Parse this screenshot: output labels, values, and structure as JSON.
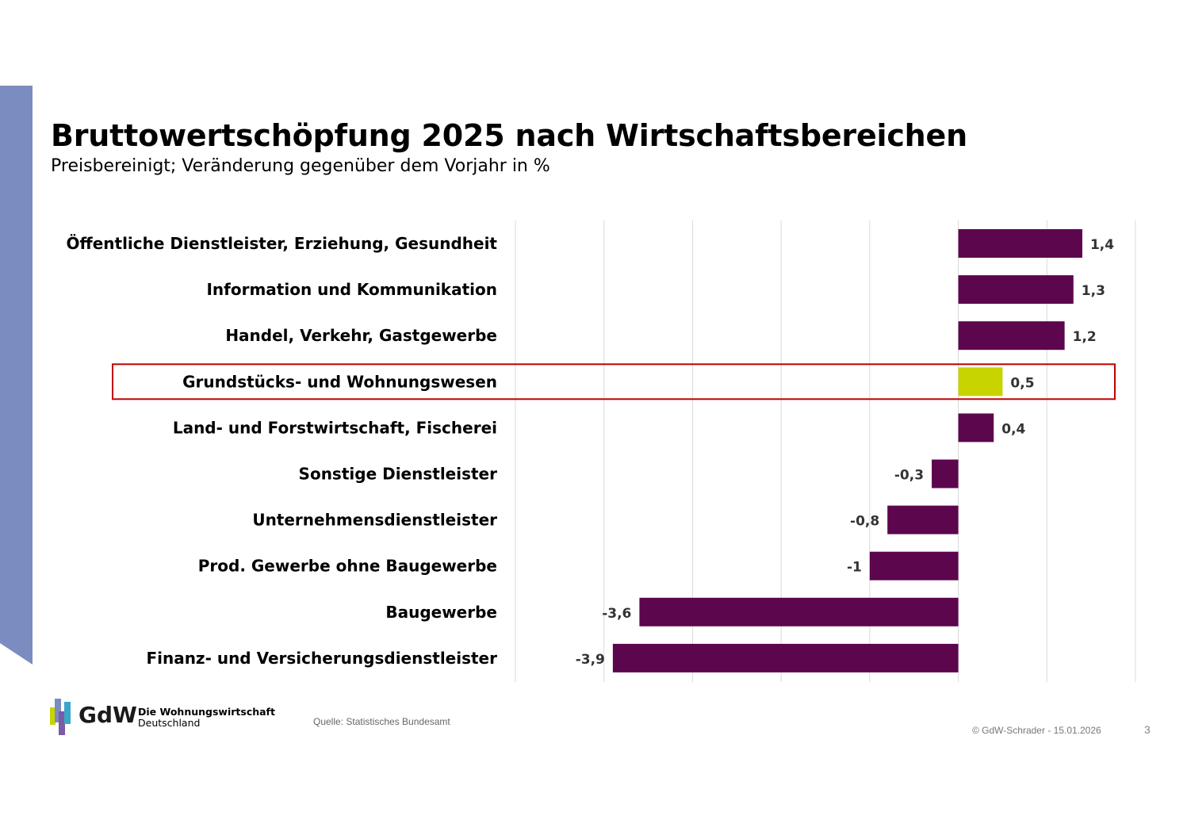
{
  "header": {
    "title": "Bruttowertschöpfung 2025 nach Wirtschaftsbereichen",
    "subtitle": "Preisbereinigt; Veränderung gegenüber dem Vorjahr in %"
  },
  "colors": {
    "bar": "#5c064e",
    "highlight_bar": "#c7d400",
    "highlight_frame": "#c00000",
    "side_band": "#7b8cc0",
    "gridline": "#d9d9d9"
  },
  "chart_data": {
    "type": "bar",
    "orientation": "horizontal",
    "categories": [
      "Öffentliche Dienstleister, Erziehung, Gesundheit",
      "Information und Kommunikation",
      "Handel, Verkehr, Gastgewerbe",
      "Grundstücks- und Wohnungswesen",
      "Land- und Forstwirtschaft, Fischerei",
      "Sonstige Dienstleister",
      "Unternehmensdienstleister",
      "Prod. Gewerbe ohne Baugewerbe",
      "Baugewerbe",
      "Finanz- und Versicherungsdienstleister"
    ],
    "values": [
      1.4,
      1.3,
      1.2,
      0.5,
      0.4,
      -0.3,
      -0.8,
      -1,
      -3.6,
      -3.9
    ],
    "value_labels": [
      "1,4",
      "1,3",
      "1,2",
      "0,5",
      "0,4",
      "-0,3",
      "-0,8",
      "-1",
      "-3,6",
      "-3,9"
    ],
    "highlighted_category": "Grundstücks- und Wohnungswesen",
    "xlim": [
      -5,
      2
    ],
    "gridlines": [
      -5,
      -4,
      -3,
      -2,
      -1,
      0,
      1,
      2
    ],
    "grid": true,
    "legend": "none"
  },
  "logo": {
    "wordmark": "GdW",
    "line1": "Die Wohnungswirtschaft",
    "line2": "Deutschland"
  },
  "footer": {
    "source": "Quelle: Statistisches Bundesamt",
    "credit": "© GdW-Schrader - 15.01.2026",
    "page_number": "3"
  }
}
